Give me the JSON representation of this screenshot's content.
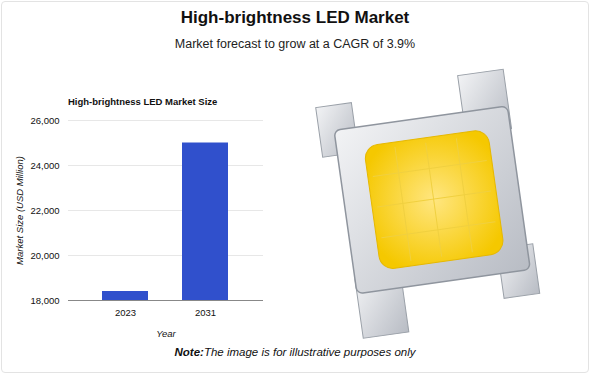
{
  "chart_data": {
    "type": "bar",
    "suptitle": "High-brightness LED Market",
    "subtitle": "Market forecast to grow at a CAGR of 3.9%",
    "title": "High-brightness LED Market Size",
    "x_label": "Year",
    "y_label": "Market Size (USD Million)",
    "categories": [
      "2023",
      "2031"
    ],
    "values": [
      18400,
      25000
    ],
    "color": "#3050cc",
    "ylim": [
      18000,
      26000
    ],
    "yticks": [
      {
        "value": 18000,
        "label": "18,000"
      },
      {
        "value": 20000,
        "label": "20,000"
      },
      {
        "value": 22000,
        "label": "22,000"
      },
      {
        "value": 24000,
        "label": "24,000"
      },
      {
        "value": 26000,
        "label": "26,000"
      }
    ],
    "grid": true,
    "annotations": [
      "Note:",
      "The image is for illustrative purposes only"
    ]
  }
}
